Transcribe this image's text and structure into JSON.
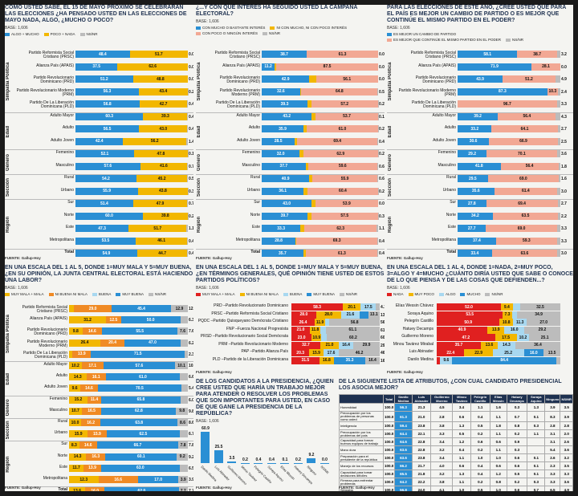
{
  "colors": {
    "blue": "#2a8fd4",
    "yellow": "#f2b701",
    "black": "#1a1a1a",
    "gray": "#bcbcbc",
    "lightgray": "#d9d9d9",
    "pink": "#f2a894",
    "lightblue": "#a8d8f0",
    "red": "#e02020",
    "darkred": "#a31b1b",
    "orange": "#f08a24",
    "navy": "#1e3150"
  },
  "source": "FUENTE: Gallup-Hoy",
  "base": "BASE: 1,606",
  "chart_data": [
    {
      "id": "p1",
      "type": "bar",
      "title": "COMO USTED SABE, EL 15 DE MAYO PRÓXIMO SE CELEBRARÁN LAS ELECCIONES ¿HA PENSADO USTED EN LAS ELECCIONES DE MAYO NADA, ALGO, ¿MUCHO O POCO?",
      "legend": [
        "ALGO + MUCHO",
        "POCO + NADA",
        "NS/NR"
      ],
      "colors": [
        "#2a8fd4",
        "#f2b701",
        "#bcbcbc"
      ],
      "sections": [
        "Simpatía Política",
        "Edad",
        "Género",
        "Sección",
        "Región"
      ],
      "categories": [
        "Partido Reformista Social Cristiano (PRSC)",
        "Alianza País (APAIS)",
        "Partido Revolucionario Dominicano (PRD)",
        "Partido Revolucionario Moderno (PRM)",
        "Partido De La Liberación Dominicana (PLD)",
        "Adulto Mayor",
        "Adulto",
        "Adulto Joven",
        "Femenino",
        "Masculino",
        "Rural",
        "Urbano",
        "Sur",
        "Norte",
        "Este",
        "Metropolitana",
        "Total"
      ],
      "section_of": [
        0,
        0,
        0,
        0,
        0,
        1,
        1,
        1,
        2,
        2,
        3,
        3,
        4,
        4,
        4,
        4,
        -1
      ],
      "series": [
        {
          "name": "ALGO + MUCHO",
          "values": [
            48.4,
            37.5,
            51.2,
            56.3,
            56.8,
            60.3,
            56.5,
            42.4,
            52.1,
            57.6,
            54.2,
            55.9,
            51.4,
            60.0,
            47.3,
            53.5,
            54.9
          ]
        },
        {
          "name": "POCO + NADA",
          "values": [
            51.7,
            62.6,
            48.8,
            43.4,
            42.7,
            39.3,
            43.0,
            56.2,
            47.8,
            41.6,
            45.2,
            43.8,
            47.9,
            39.8,
            51.7,
            46.1,
            44.7
          ]
        },
        {
          "name": "NS/NR",
          "values": [
            0,
            0,
            0,
            0.2,
            0.4,
            0.4,
            0.4,
            1.4,
            0.1,
            0.7,
            0.5,
            0.3,
            0.7,
            0.2,
            1.1,
            0.4,
            0.4
          ]
        }
      ]
    },
    {
      "id": "p2",
      "type": "bar",
      "title": "¿...Y CON QUÉ INTERÉS HA SEGUIDO USTED LA CAMPAÑA ELECTORAL?",
      "legend": [
        "CON MUCHO O BASTANTE INTERÉS",
        "NI CON MUCHO, NI CON POCO INTERÉS",
        "CON POCO O NINGÚN INTERÉS",
        "NS/NR"
      ],
      "colors": [
        "#2a8fd4",
        "#f2b701",
        "#f2a894",
        "#bcbcbc"
      ],
      "sections": [
        "Simpatía Política",
        "Edad",
        "Género",
        "Sección",
        "Región"
      ],
      "categories": [
        "Partido Reformista Social Cristiano (PRSC)",
        "Alianza País (APAIS)",
        "Partido Revolucionario Dominicano (PRD)",
        "Partido Revolucionario Moderno (PRM)",
        "Partido De La Liberación Dominicana (PLD)",
        "Adulto Mayor",
        "Adulto",
        "Adulto Joven",
        "Femenino",
        "Masculino",
        "Rural",
        "Urbano",
        "Sur",
        "Norte",
        "Este",
        "Metropolitana",
        "Total"
      ],
      "section_of": [
        0,
        0,
        0,
        0,
        0,
        1,
        1,
        1,
        2,
        2,
        3,
        3,
        4,
        4,
        4,
        4,
        -1
      ],
      "series": [
        {
          "name": "Mucho",
          "values": [
            38.7,
            11.2,
            42.9,
            32.6,
            39.3,
            43.2,
            35.9,
            28.5,
            32.0,
            37.7,
            40.9,
            36.1,
            43.0,
            39.7,
            33.3,
            28.8,
            35.7
          ]
        },
        {
          "name": "Ni mucho ni poco",
          "values": [
            0,
            1.3,
            6.0,
            1.2,
            3.3,
            3.3,
            2.9,
            1.9,
            3.1,
            2.0,
            2.6,
            3.3,
            3.1,
            3.5,
            3.3,
            0.5,
            2.5
          ]
        },
        {
          "name": "Poco",
          "values": [
            61.3,
            87.5,
            56.1,
            64.8,
            57.2,
            53.7,
            61.0,
            69.4,
            62.9,
            59.6,
            55.9,
            60.4,
            53.9,
            57.5,
            62.3,
            69.3,
            61.3
          ]
        },
        {
          "name": "NS/NR",
          "values": [
            0,
            0,
            0,
            0.5,
            0.2,
            0.1,
            0.2,
            0.4,
            0.2,
            0.6,
            0.6,
            0.2,
            0.0,
            0.3,
            1.1,
            0.4,
            0.4
          ]
        }
      ]
    },
    {
      "id": "p3",
      "type": "bar",
      "title": "PARA LAS ELECCIONES DE ESTE AÑO, ¿CREE USTED QUE PARA EL PAÍS ES MEJOR UN CAMBIO DE PARTIDO O ES MEJOR QUE CONTINÚE EL MISMO PARTIDO EN EL PODER?",
      "legend": [
        "ES MEJOR UN CAMBIO DE PARTIDO",
        "ES MEJOR QUE CONTINÚE EL MISMO PARTIDO EN EL PODER",
        "NS/NR"
      ],
      "colors": [
        "#2a8fd4",
        "#f2a894",
        "#bcbcbc"
      ],
      "sections": [
        "Simpatía Política",
        "Edad",
        "Género",
        "Sección",
        "Región"
      ],
      "categories": [
        "Partido Reformista Social Cristiano (PRSC)",
        "Alianza País (APAIS)",
        "Partido Revolucionario Dominicano (PRD)",
        "Partido Revolucionario Moderno (PRM)",
        "Partido De La Liberación Dominicana (PLD)",
        "Adulto Mayor",
        "Adulto",
        "Adulto Joven",
        "Femenino",
        "Masculino",
        "Rural",
        "Urbano",
        "Sur",
        "Norte",
        "Este",
        "Metropolitana",
        "Total"
      ],
      "section_of": [
        0,
        0,
        0,
        0,
        0,
        1,
        1,
        1,
        2,
        2,
        3,
        3,
        4,
        4,
        4,
        4,
        -1
      ],
      "series": [
        {
          "name": "Cambio",
          "values": [
            58.1,
            71.9,
            43.9,
            87.3,
            0,
            39.2,
            33.2,
            30.6,
            29.2,
            41.8,
            29.5,
            35.6,
            27.8,
            34.2,
            27.7,
            37.4,
            33.4
          ]
        },
        {
          "name": "Continúe",
          "values": [
            38.7,
            28.1,
            51.2,
            10.3,
            96.7,
            56.4,
            64.1,
            66.9,
            70.1,
            56.4,
            69.0,
            61.4,
            69.4,
            63.5,
            69.0,
            59.3,
            63.6
          ]
        },
        {
          "name": "NS/NR",
          "values": [
            3.2,
            0,
            4.9,
            2.4,
            3.3,
            4.3,
            2.7,
            2.5,
            3.6,
            1.8,
            1.6,
            3.0,
            2.7,
            2.2,
            3.3,
            3.3,
            3.0
          ]
        }
      ]
    },
    {
      "id": "p4",
      "type": "bar",
      "title": "EN UNA ESCALA DEL 1 AL 5, DONDE 1=MUY MALA Y 5=MUY BUENA, ¿EN SU OPINIÓN, LA JUNTA CENTRAL ELECTORAL ESTÁ HACIENDO UNA LABOR?",
      "legend": [
        "MUY MALA + MALA",
        "NI BUENA NI MALA",
        "BUENA",
        "MUY BUENA",
        "NS/NR"
      ],
      "colors": [
        "#f2b701",
        "#f08a24",
        "#a8d8f0",
        "#2a8fd4",
        "#bcbcbc"
      ],
      "sections": [
        "Simpatía Política",
        "Edad",
        "Género",
        "Sección",
        "Región"
      ],
      "categories": [
        "Partido Reformista Social Cristiano (PRSC)",
        "Alianza País (APAIS)",
        "Partido Revolucionario Dominicano (PRD)",
        "Partido Revolucionario Moderno (PRM)",
        "Partido De La Liberación Dominicana (PLD)",
        "Adulto Mayor",
        "Adulto",
        "Adulto Joven",
        "Femenino",
        "Masculino",
        "Rural",
        "Urbano",
        "Sur",
        "Norte",
        "Este",
        "Metropolitana",
        "Total"
      ],
      "section_of": [
        0,
        0,
        0,
        0,
        0,
        1,
        1,
        1,
        2,
        2,
        3,
        3,
        4,
        4,
        4,
        4,
        -1
      ],
      "series": [
        {
          "name": "Mala",
          "values": [
            3.7,
            31.2,
            9.8,
            26.4,
            2.7,
            10.2,
            14.3,
            9.6,
            15.2,
            10.7,
            10.0,
            15.9,
            8.3,
            14.3,
            11.7,
            12.3,
            13.6
          ]
        },
        {
          "name": "Ni buena ni mala",
          "values": [
            29.0,
            12.5,
            14.6,
            20.4,
            13.9,
            17.1,
            16.1,
            14.6,
            11.4,
            16.5,
            16.2,
            15.9,
            14.6,
            16.3,
            13.9,
            16.6,
            16.0
          ]
        },
        {
          "name": "Buena",
          "values": [
            0,
            0,
            0,
            0,
            0,
            0,
            0,
            0,
            0,
            0,
            0,
            0,
            0,
            0,
            0,
            0,
            0
          ]
        },
        {
          "name": "Muy buena",
          "values": [
            45.4,
            50.0,
            55.5,
            47.0,
            71.5,
            57.6,
            61.0,
            70.5,
            65.8,
            62.8,
            63.8,
            62.5,
            66.7,
            60.1,
            63.0,
            17.0,
            62.0
          ]
        },
        {
          "name": "NS/NR",
          "values": [
            12.9,
            6.3,
            7.6,
            6.2,
            2.3,
            10.1,
            6.6,
            5.4,
            6.0,
            9.8,
            8.6,
            6.7,
            7.8,
            9.2,
            6.5,
            3.9,
            7.7
          ]
        }
      ]
    },
    {
      "id": "p5",
      "type": "bar",
      "title": "EN UNA ESCALA DEL 1 AL 5, DONDE 1=MUY MALA Y 5=MUY BUENA, ¿EN TÉRMINOS GENERALES, QUÉ OPINIÓN TIENE USTED DE ESTOS PARTIDOS POLÍTICOS?",
      "legend": [
        "MUY MALA + MALA",
        "NI BUENA NI MALA",
        "BUENA",
        "MUY BUENA",
        "NS/NR"
      ],
      "colors": [
        "#e02020",
        "#f2b701",
        "#a8d8f0",
        "#2a8fd4",
        "#bcbcbc"
      ],
      "categories": [
        "PRD –Partido Revolucionario Dominicano",
        "PRSC –Partido Reformista Social Cristiano",
        "PQDC –Partido Quisqueyano Demócrata Cristiano",
        "FNP –Fuerza Nacional Progresista",
        "PRSD –Partido Revolucionario Social Demócrata",
        "PRM –Partido Revolucionario Moderno",
        "PAP –Partido Alianza País",
        "PLD –Partido de la Liberación Dominicana"
      ],
      "series": [
        {
          "name": "Mala",
          "values": [
            58.3,
            28.0,
            26.4,
            21.0,
            23.0,
            32.7,
            20.3,
            31.5
          ]
        },
        {
          "name": "Ni buena ni mala",
          "values": [
            20.1,
            28.0,
            11.9,
            11.8,
            10.9,
            21.0,
            15.9,
            16.8
          ]
        },
        {
          "name": "Buena",
          "values": [
            17.5,
            21.6,
            4.9,
            6.1,
            5.9,
            16.4,
            17.6,
            0
          ]
        },
        {
          "name": "Muy buena",
          "values": [
            0,
            9.3,
            0,
            0,
            0,
            0,
            0,
            35.3
          ]
        },
        {
          "name": "NS/NR",
          "values": [
            4.1,
            13.1,
            56.8,
            61.1,
            60.2,
            29.9,
            46.2,
            16.4
          ]
        }
      ]
    },
    {
      "id": "p6",
      "type": "bar",
      "title": "EN UNA ESCALA DEL 1 AL 4, DONDE 1=NADA, 2=MUY POCO, 3=ALGO Y 4=MUCHO ¿CUÁNTO DIRÍA USTED QUE SABE O CONOCE DE LO QUE PIENSA Y DE LAS COSAS QUE DEFIENDEN...?",
      "legend": [
        "NADA",
        "MUY POCO",
        "ALGO",
        "MUCHO",
        "NS/NR"
      ],
      "colors": [
        "#e02020",
        "#f2b701",
        "#a8d8f0",
        "#2a8fd4",
        "#bcbcbc"
      ],
      "categories": [
        "Elías Wessin Chávez",
        "Soraya Aquino",
        "Pelegrín Castillo",
        "Hatuey Decamps",
        "Guillermo Moreno",
        "Minou Tavárez Mirabal",
        "Luis Abinader",
        "Danilo Medina"
      ],
      "series": [
        {
          "name": "Nada",
          "values": [
            52.0,
            53.5,
            50.9,
            40.9,
            47.2,
            35.7,
            22.4,
            2.4
          ]
        },
        {
          "name": "Muy poco",
          "values": [
            9.4,
            7.3,
            10.8,
            13.9,
            17.5,
            13.6,
            22.9,
            0.5
          ]
        },
        {
          "name": "Algo",
          "values": [
            6.1,
            4.3,
            11.3,
            16.0,
            10.2,
            14.3,
            25.2,
            9.6
          ]
        },
        {
          "name": "Mucho",
          "values": [
            0,
            0,
            0,
            0,
            0,
            0,
            16.0,
            84.4
          ]
        },
        {
          "name": "NS/NR",
          "values": [
            32.5,
            34.9,
            27.0,
            29.2,
            25.1,
            36.4,
            13.5,
            3.1
          ]
        },
        {
          "name": "Tail",
          "values": [
            26.4,
            24.4,
            22.6,
            26.4,
            6.4,
            1.4,
            1.5,
            3.1
          ]
        }
      ]
    },
    {
      "id": "p7",
      "type": "bar",
      "title": "DE LOS CANDIDATOS A LA PRESIDENCIA, ¿QUIÉN CREE USTED QUE HARÍA UN TRABAJO MEJOR PARA ATENDER O RESOLVER LOS PROBLEMAS QUE SON IMPORTANTES PARA USTED, EN CASO DE QUE GANE LA PRESIDENCIA DE LA REPÚBLICA?",
      "categories": [
        "Danilo Medina",
        "Luis Abinader",
        "Guillermo Moreno",
        "Minou Tavárez",
        "Pelegrín Castillo",
        "Soraya Aquino",
        "Elías Wessin",
        "Hatuey Decamps",
        "Ninguno",
        "NS/NR"
      ],
      "values": [
        60.9,
        25.5,
        3.5,
        0.2,
        0.4,
        0.4,
        0.1,
        0.2,
        9.2,
        0.0
      ],
      "ylim": [
        0,
        70
      ]
    }
  ],
  "attr_table": {
    "title": "DE LA SIGUIENTE LISTA DE ATRIBUTOS, ¿CON CUÁL CANDIDATO PRESIDENCIAL LOS ASOCIA MEJOR?",
    "headers": [
      "Total",
      "Danilo Medina",
      "Luis Abinader",
      "Guillermo Moreno",
      "Minou Tavárez",
      "Pelegrín Castillo",
      "Elías Wessin",
      "Hatuey Decamps",
      "Soraya Aquino",
      "Ninguno",
      "NS/NR"
    ],
    "rows": [
      {
        "label": "Honestidad",
        "values": [
          "100.0",
          "56.3",
          "21.3",
          "4.5",
          "3.4",
          "1.1",
          "1.6",
          "0.3",
          "1.3",
          "3.9",
          "3.5"
        ]
      },
      {
        "label": "Preocupación por los problemas de personas como usted",
        "values": [
          "100.0",
          "61.3",
          "21.0",
          "2.8",
          "0.6",
          "0.4",
          "1.1",
          "0.7",
          "0.1",
          "8.3",
          "3.9"
        ]
      },
      {
        "label": "Inteligencia",
        "values": [
          "100.0",
          "59.4",
          "23.8",
          "3.8",
          "1.3",
          "0.5",
          "1.8",
          "0.8",
          "0.3",
          "2.8",
          "2.8"
        ]
      },
      {
        "label": "Preocupación por los problemas del país",
        "values": [
          "100.0",
          "64.4",
          "22.1",
          "3.3",
          "0.5",
          "0.2",
          "1.1",
          "0.2",
          "1.1",
          "3.1",
          "2.0"
        ]
      },
      {
        "label": "Capacidad para formar buenos equipos de trabajo",
        "values": [
          "100.0",
          "64.6",
          "22.8",
          "3.4",
          "1.2",
          "0.6",
          "0.6",
          "0.9",
          "",
          "3.1",
          "2.6"
        ]
      },
      {
        "label": "Mano dura",
        "values": [
          "100.0",
          "63.6",
          "22.8",
          "3.2",
          "0.4",
          "0.2",
          "1.1",
          "0.3",
          "",
          "5.4",
          "3.6"
        ]
      },
      {
        "label": "Preparación para el presidente de la república",
        "values": [
          "100.0",
          "63.6",
          "23.8",
          "3.4",
          "1.1",
          "1.0",
          "1.0",
          "0.6",
          "0.1",
          "2.6",
          "3.2"
        ]
      },
      {
        "label": "Manejo de los recursos",
        "values": [
          "100.0",
          "66.2",
          "21.7",
          "4.0",
          "0.6",
          "0.4",
          "0.6",
          "0.6",
          "0.1",
          "2.3",
          "3.5"
        ]
      },
      {
        "label": "Capacidad para tomar decisiones difíciles",
        "values": [
          "100.0",
          "65.5",
          "21.8",
          "3.2",
          "1.3",
          "0.4",
          "1.2",
          "0.5",
          "0.1",
          "3.3",
          "3.3"
        ]
      },
      {
        "label": "Firmeza para enfrentar problemas",
        "values": [
          "100.0",
          "64.2",
          "22.2",
          "3.8",
          "1.1",
          "0.2",
          "0.8",
          "0.2",
          "0.3",
          "3.3",
          "3.6"
        ]
      },
      {
        "label": "Simpatía",
        "values": [
          "100.0",
          "56.8",
          "24.0",
          "4.1",
          "1.0",
          "0.5",
          "1.0",
          "0.6",
          "0.7",
          "6.5",
          "4.9"
        ]
      },
      {
        "label": "Liderazgo",
        "values": [
          "100.0",
          "65.6",
          "24.5",
          "2.9",
          "0.5",
          "0.2",
          "0.9",
          "0.2",
          "0.4",
          "2.3",
          "2.4"
        ]
      }
    ]
  }
}
